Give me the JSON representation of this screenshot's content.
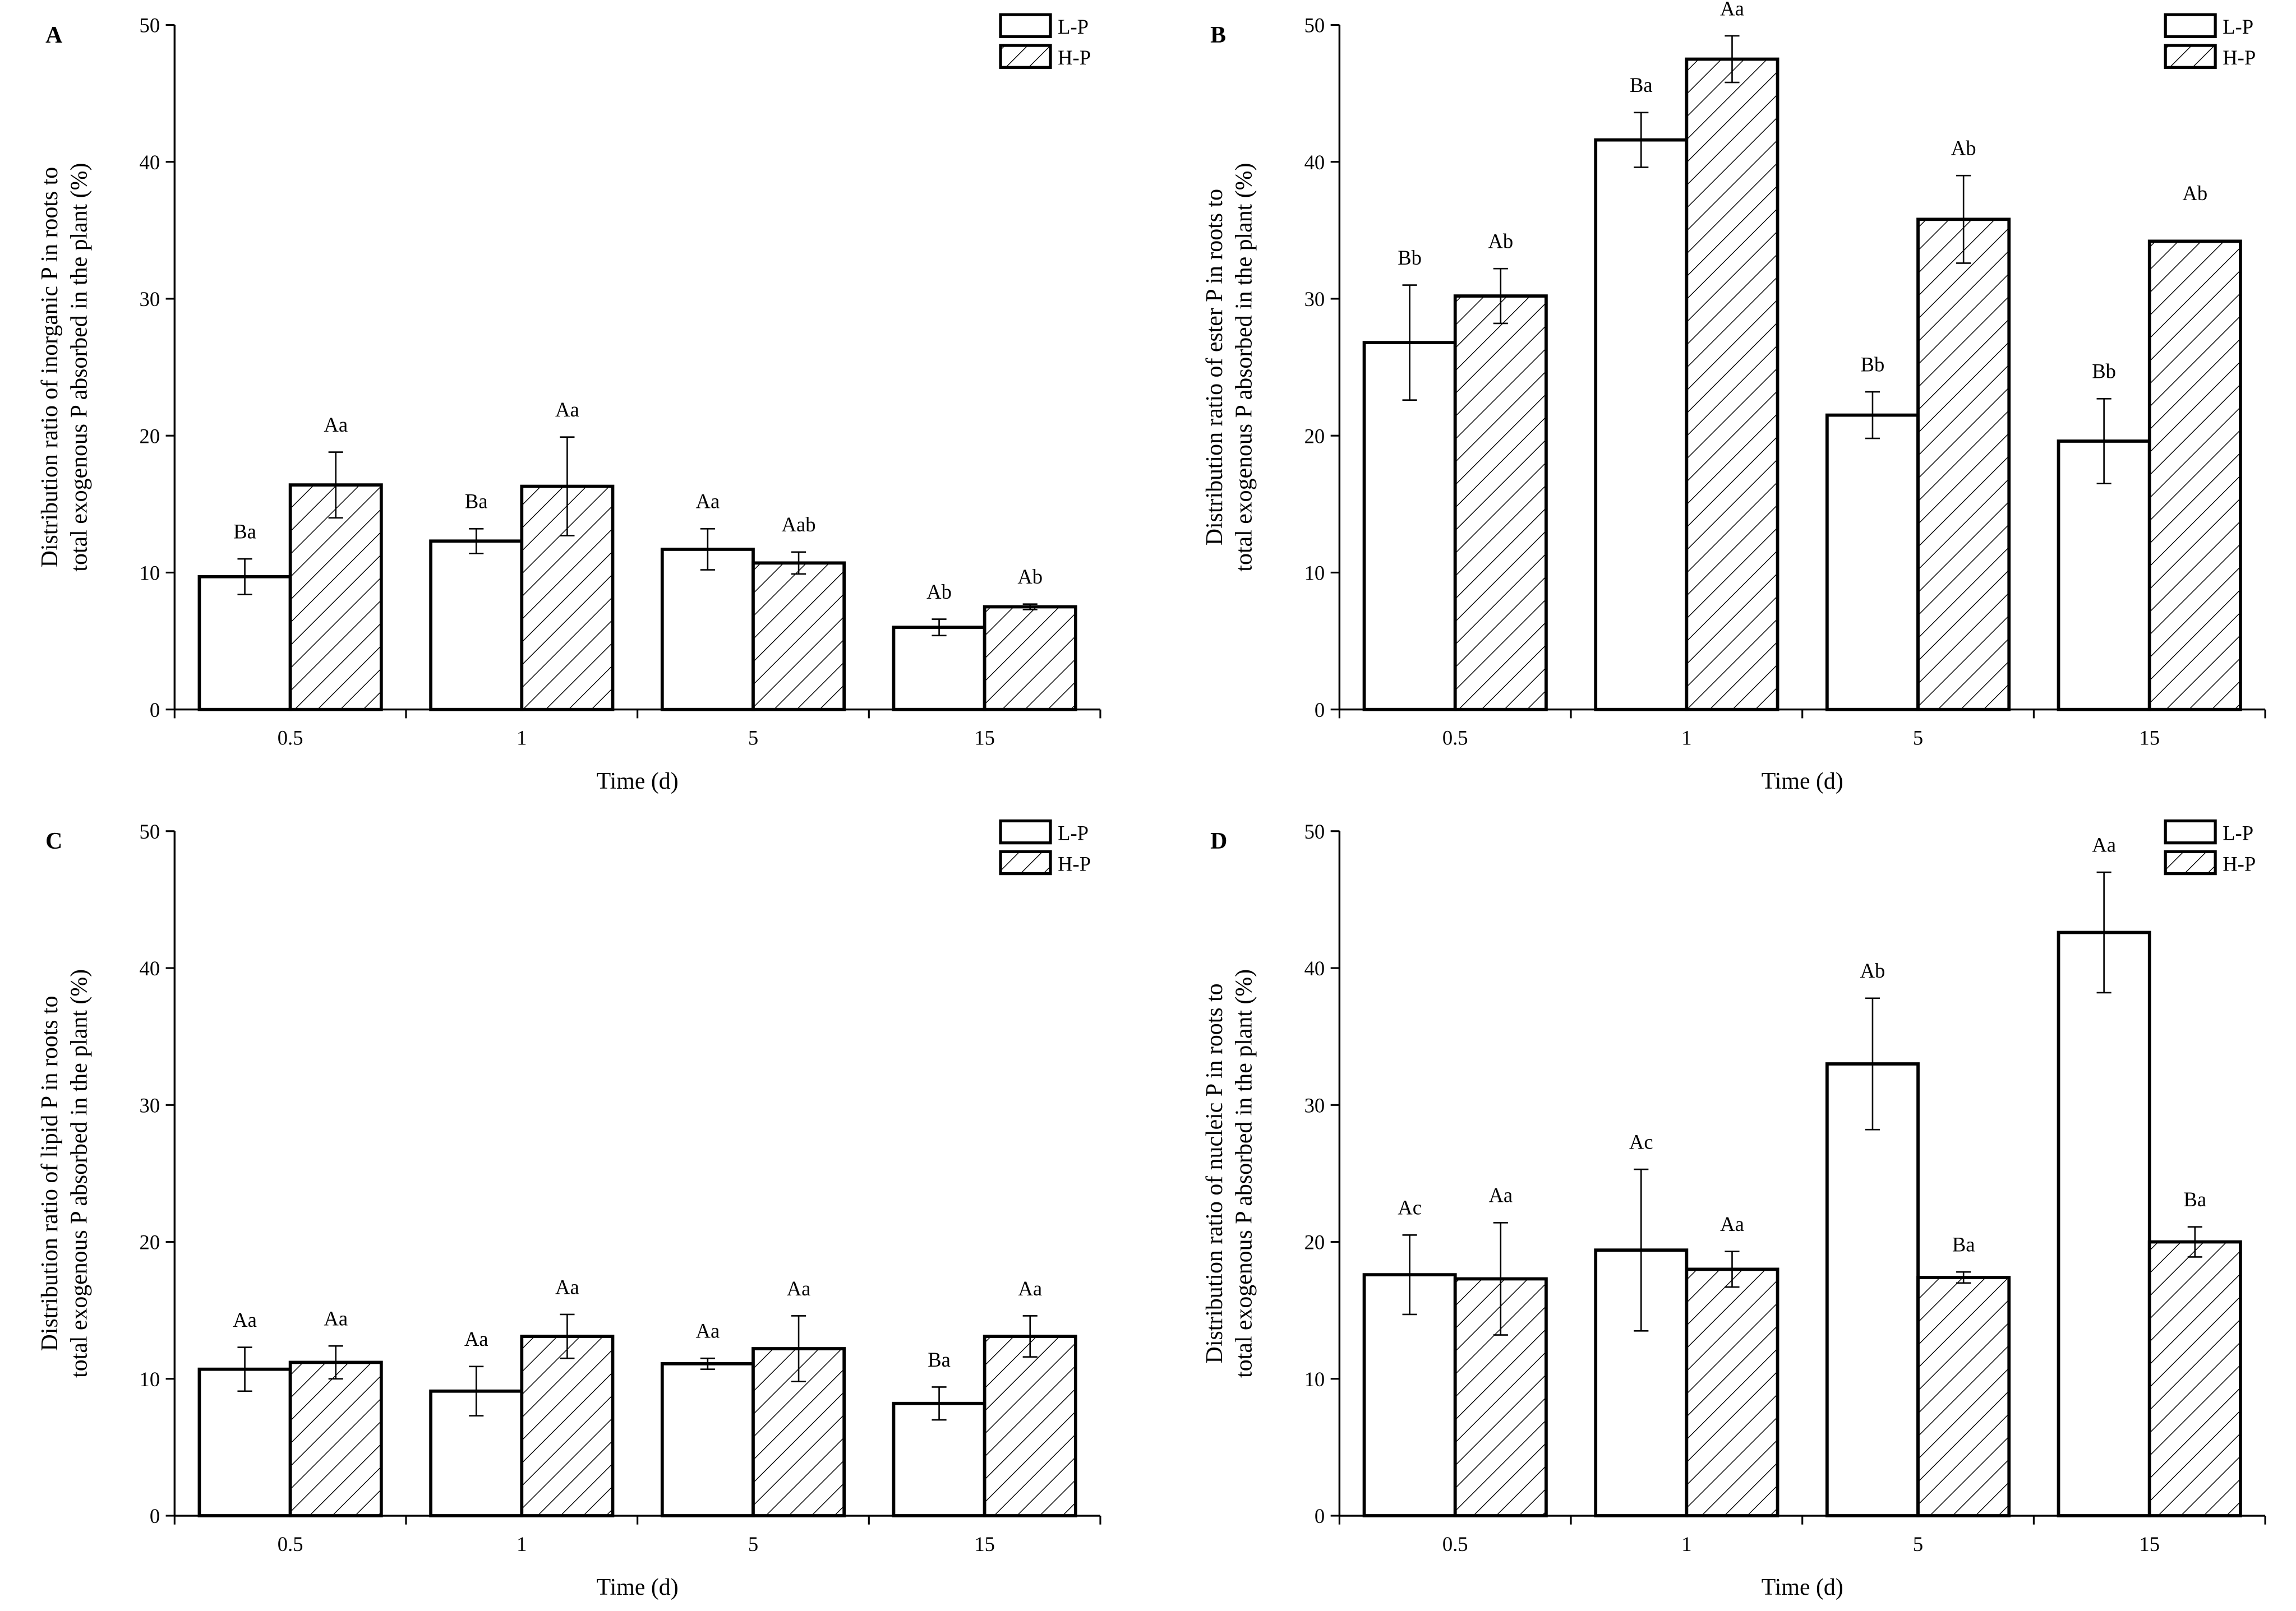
{
  "legend_labels": [
    "L-P",
    "H-P"
  ],
  "chart_data": [
    {
      "panel": "A",
      "type": "bar",
      "categories": [
        "0.5",
        "1",
        "5",
        "15"
      ],
      "xlabel": "Time (d)",
      "ylabel": [
        "Distribution ratio of inorganic P in roots to",
        "total exogenous P absorbed in the plant (%)"
      ],
      "ylim": [
        0,
        50
      ],
      "yticks": [
        "0",
        "10",
        "20",
        "30",
        "40",
        "50"
      ],
      "legend": "top-right",
      "series": [
        {
          "name": "L-P",
          "values": [
            9.7,
            12.3,
            11.7,
            6.0
          ],
          "errors": [
            1.3,
            0.9,
            1.5,
            0.6
          ],
          "labels": [
            "Ba",
            "Ba",
            "Aa",
            "Ab"
          ]
        },
        {
          "name": "H-P",
          "values": [
            16.4,
            16.3,
            10.7,
            7.5
          ],
          "errors": [
            2.4,
            3.6,
            0.8,
            0.2
          ],
          "labels": [
            "Aa",
            "Aa",
            "Aab",
            "Ab"
          ]
        }
      ]
    },
    {
      "panel": "B",
      "type": "bar",
      "categories": [
        "0.5",
        "1",
        "5",
        "15"
      ],
      "xlabel": "Time (d)",
      "ylabel": [
        "Distribution ratio of ester P in roots to",
        "total exogenous P absorbed in the plant (%)"
      ],
      "ylim": [
        0,
        50
      ],
      "yticks": [
        "0",
        "10",
        "20",
        "30",
        "40",
        "50"
      ],
      "legend": "top-right",
      "series": [
        {
          "name": "L-P",
          "values": [
            26.8,
            41.6,
            21.5,
            19.6
          ],
          "errors": [
            4.2,
            2.0,
            1.7,
            3.1
          ],
          "labels": [
            "Bb",
            "Ba",
            "Bb",
            "Bb"
          ]
        },
        {
          "name": "H-P",
          "values": [
            30.2,
            47.5,
            35.8,
            34.2
          ],
          "errors": [
            2.0,
            1.7,
            3.2,
            0.0
          ],
          "labels": [
            "Ab",
            "Aa",
            "Ab",
            "Ab"
          ]
        }
      ]
    },
    {
      "panel": "C",
      "type": "bar",
      "categories": [
        "0.5",
        "1",
        "5",
        "15"
      ],
      "xlabel": "Time (d)",
      "ylabel": [
        "Distribution ratio of lipid P in roots to",
        "total exogenous P absorbed in the plant (%)"
      ],
      "ylim": [
        0,
        50
      ],
      "yticks": [
        "0",
        "10",
        "20",
        "30",
        "40",
        "50"
      ],
      "legend": "top-right",
      "series": [
        {
          "name": "L-P",
          "values": [
            10.7,
            9.1,
            11.1,
            8.2
          ],
          "errors": [
            1.6,
            1.8,
            0.4,
            1.2
          ],
          "labels": [
            "Aa",
            "Aa",
            "Aa",
            "Ba"
          ]
        },
        {
          "name": "H-P",
          "values": [
            11.2,
            13.1,
            12.2,
            13.1
          ],
          "errors": [
            1.2,
            1.6,
            2.4,
            1.5
          ],
          "labels": [
            "Aa",
            "Aa",
            "Aa",
            "Aa"
          ]
        }
      ]
    },
    {
      "panel": "D",
      "type": "bar",
      "categories": [
        "0.5",
        "1",
        "5",
        "15"
      ],
      "xlabel": "Time (d)",
      "ylabel": [
        "Distribution ratio of nucleic P in roots to",
        "total exogenous P absorbed in the plant (%)"
      ],
      "ylim": [
        0,
        50
      ],
      "yticks": [
        "0",
        "10",
        "20",
        "30",
        "40",
        "50"
      ],
      "legend": "top-right",
      "series": [
        {
          "name": "L-P",
          "values": [
            17.6,
            19.4,
            33.0,
            42.6
          ],
          "errors": [
            2.9,
            5.9,
            4.8,
            4.4
          ],
          "labels": [
            "Ac",
            "Ac",
            "Ab",
            "Aa"
          ]
        },
        {
          "name": "H-P",
          "values": [
            17.3,
            18.0,
            17.4,
            20.0
          ],
          "errors": [
            4.1,
            1.3,
            0.4,
            1.1
          ],
          "labels": [
            "Aa",
            "Aa",
            "Ba",
            "Ba"
          ]
        }
      ]
    }
  ]
}
